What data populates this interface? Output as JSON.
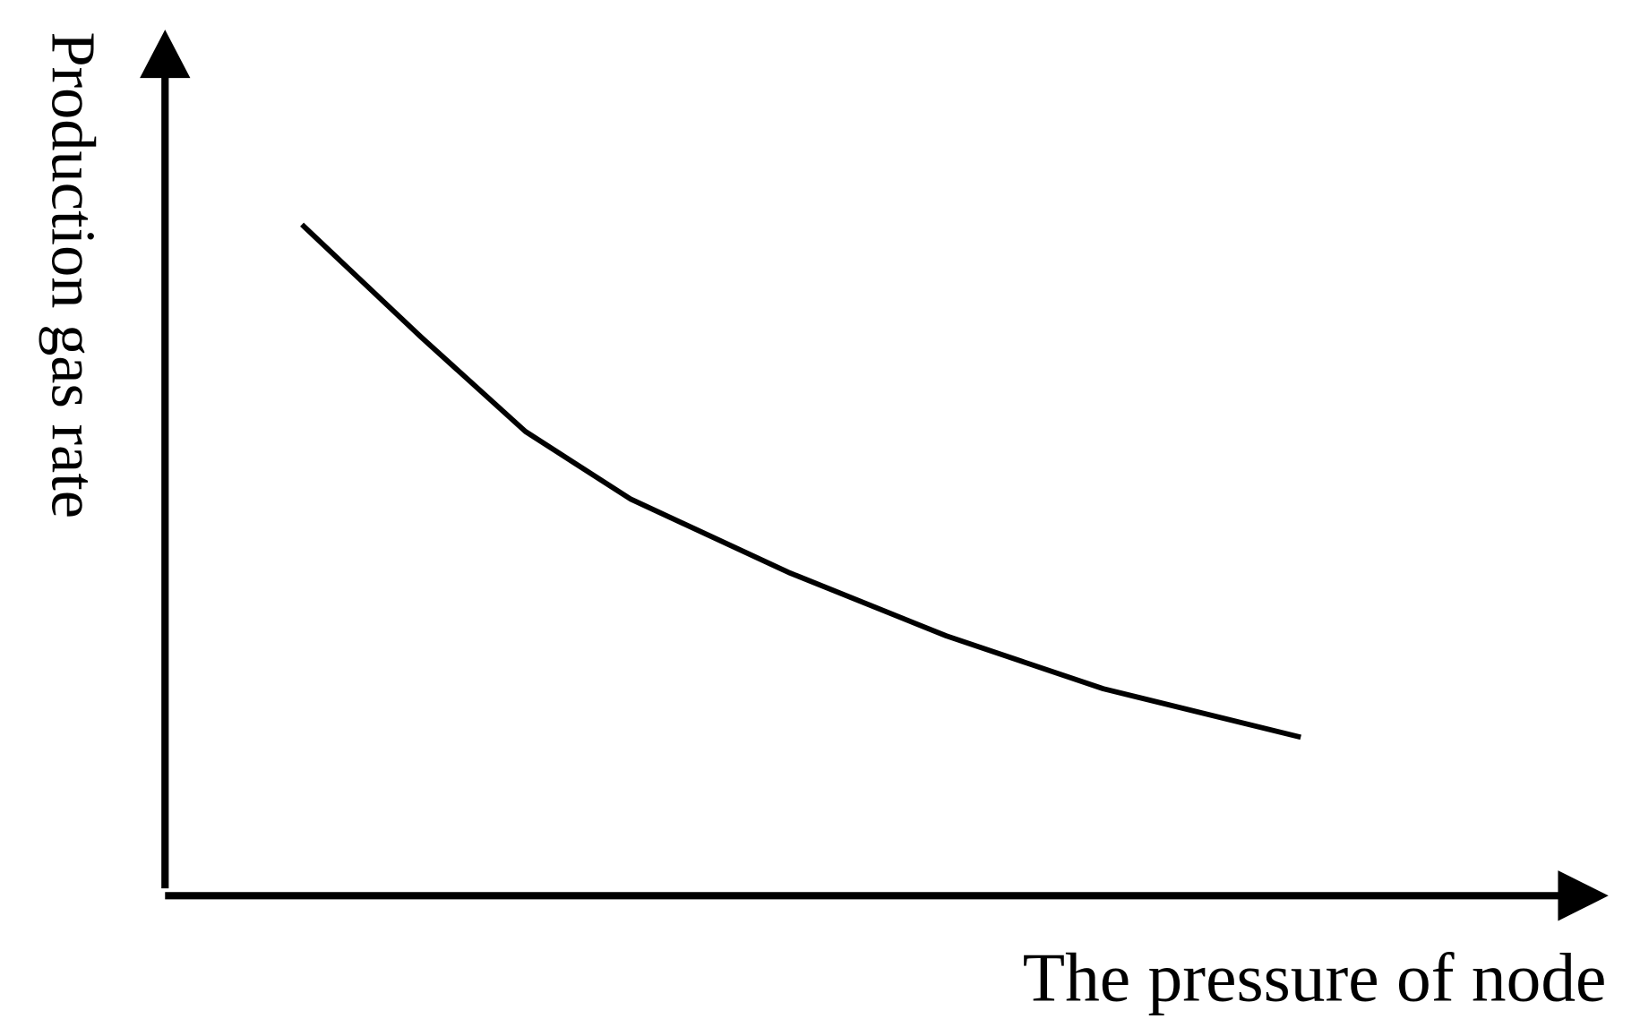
{
  "chart_data": {
    "type": "line",
    "x_label": "The pressure of node",
    "y_label": "Production gas rate",
    "x": [
      9.5,
      17.7,
      25.0,
      32.3,
      43.3,
      54.2,
      65.1,
      78.8
    ],
    "series": [
      {
        "color": "#000000",
        "values": [
          77.5,
          64.6,
          53.6,
          45.8,
          37.3,
          30.0,
          23.9,
          18.3
        ]
      }
    ],
    "xlim": [
      0,
      100
    ],
    "ylim": [
      0,
      100
    ],
    "grid": false
  }
}
